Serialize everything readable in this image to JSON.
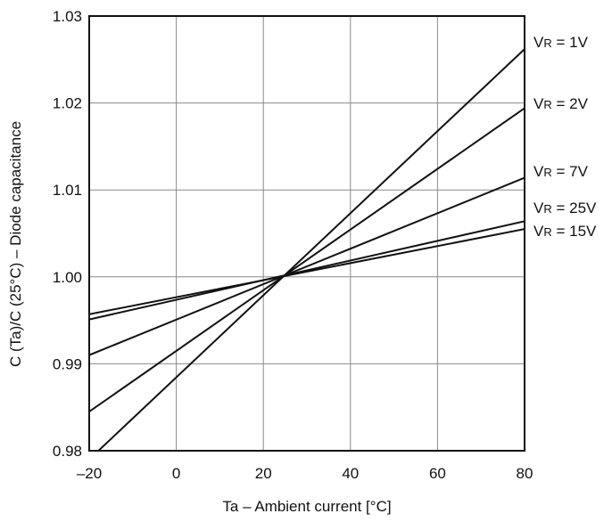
{
  "chart_data": {
    "type": "line",
    "xlabel": "Ta – Ambient current [°C]",
    "ylabel": "C (Ta)/C (25°C) – Diode capacitance",
    "xlim": [
      -20,
      80
    ],
    "ylim": [
      0.98,
      1.03
    ],
    "xticks": [
      -20,
      0,
      20,
      40,
      60,
      80
    ],
    "xtick_labels": [
      "–20",
      "0",
      "20",
      "40",
      "60",
      "80"
    ],
    "yticks": [
      0.98,
      0.99,
      1.0,
      1.01,
      1.02,
      1.03
    ],
    "ytick_labels": [
      "0.98",
      "0.99",
      "1.00",
      "1.01",
      "1.02",
      "1.03"
    ],
    "grid": true,
    "series": [
      {
        "label_main": "V",
        "label_sub": "R",
        "label_rest": " = 1V",
        "x": [
          -20,
          80
        ],
        "y": [
          0.979,
          1.0262
        ]
      },
      {
        "label_main": "V",
        "label_sub": "R",
        "label_rest": " = 2V",
        "x": [
          -20,
          80
        ],
        "y": [
          0.9845,
          1.0194
        ]
      },
      {
        "label_main": "V",
        "label_sub": "R",
        "label_rest": " = 7V",
        "x": [
          -20,
          80
        ],
        "y": [
          0.991,
          1.0114
        ]
      },
      {
        "label_main": "V",
        "label_sub": "R",
        "label_rest": " = 25V",
        "x": [
          -20,
          80
        ],
        "y": [
          0.9951,
          1.0064
        ]
      },
      {
        "label_main": "V",
        "label_sub": "R",
        "label_rest": " = 15V",
        "x": [
          -20,
          80
        ],
        "y": [
          0.9957,
          1.0055
        ]
      }
    ]
  }
}
